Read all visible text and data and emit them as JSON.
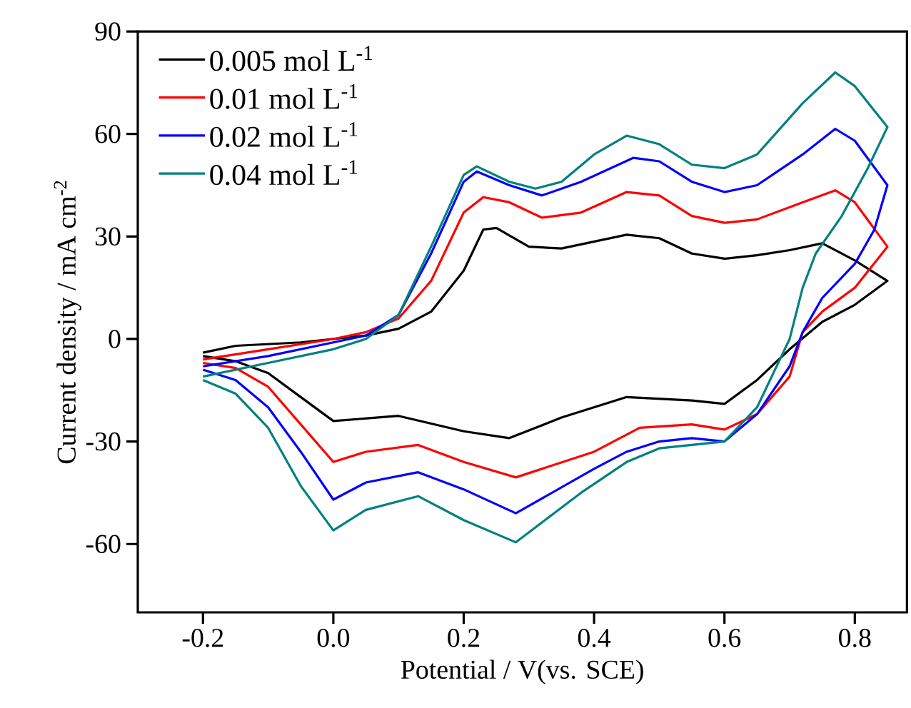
{
  "chart_data": {
    "type": "line",
    "xlabel": "Potential / V(vs. SCE)",
    "ylabel": "Current density / mA cm$^{-2}$",
    "xlim": [
      -0.3,
      0.88
    ],
    "ylim": [
      -80,
      90
    ],
    "xticks": [
      -0.2,
      {
        "value": 0,
        "label": "0.0"
      },
      0.2,
      0.4,
      0.6,
      0.8
    ],
    "yticks": [
      -60,
      -30,
      0,
      30,
      60,
      90
    ],
    "legend": "top left",
    "series": [
      {
        "name": "0.005 mol L$^{-1}$",
        "color": "#000000",
        "x": [
          -0.2,
          -0.15,
          -0.05,
          0.05,
          0.1,
          0.15,
          0.2,
          0.23,
          0.25,
          0.3,
          0.35,
          0.45,
          0.5,
          0.55,
          0.6,
          0.65,
          0.7,
          0.75,
          0.8,
          0.85,
          0.8,
          0.75,
          0.7,
          0.65,
          0.6,
          0.55,
          0.45,
          0.35,
          0.27,
          0.2,
          0.1,
          0.0,
          -0.05,
          -0.1,
          -0.15,
          -0.2
        ],
        "values": [
          -4,
          -2,
          -1,
          1,
          3,
          8,
          20,
          32,
          32.5,
          27,
          26.5,
          30.5,
          29.5,
          25,
          23.5,
          24.5,
          26,
          28,
          23,
          17,
          10,
          5,
          -3,
          -12,
          -19,
          -18,
          -17,
          -23,
          -29,
          -27,
          -22.5,
          -24,
          -17,
          -10,
          -6.5,
          -5
        ]
      },
      {
        "name": "0.01 mol L$^{-1}$",
        "color": "#ff0000",
        "x": [
          -0.2,
          -0.1,
          0,
          0.05,
          0.1,
          0.15,
          0.2,
          0.23,
          0.27,
          0.32,
          0.38,
          0.45,
          0.5,
          0.55,
          0.6,
          0.65,
          0.72,
          0.77,
          0.8,
          0.85,
          0.8,
          0.75,
          0.72,
          0.7,
          0.65,
          0.6,
          0.55,
          0.47,
          0.4,
          0.28,
          0.2,
          0.13,
          0.05,
          0,
          -0.05,
          -0.1,
          -0.15,
          -0.2
        ],
        "values": [
          -6,
          -3,
          0,
          2,
          6,
          17,
          37,
          41.5,
          40,
          35.5,
          37,
          43,
          42,
          36,
          34,
          35,
          40,
          43.5,
          40,
          27,
          15,
          8,
          2,
          -11,
          -22,
          -26.5,
          -25,
          -26,
          -33,
          -40.5,
          -36,
          -31,
          -33,
          -36,
          -25,
          -14,
          -8.5,
          -7
        ]
      },
      {
        "name": "0.02 mol L$^{-1}$",
        "color": "#0000ff",
        "x": [
          -0.2,
          -0.1,
          0,
          0.05,
          0.1,
          0.15,
          0.2,
          0.22,
          0.27,
          0.32,
          0.38,
          0.46,
          0.5,
          0.55,
          0.6,
          0.65,
          0.72,
          0.77,
          0.8,
          0.85,
          0.83,
          0.8,
          0.75,
          0.72,
          0.7,
          0.65,
          0.6,
          0.55,
          0.5,
          0.45,
          0.4,
          0.28,
          0.2,
          0.13,
          0.05,
          0,
          -0.05,
          -0.1,
          -0.15,
          -0.2
        ],
        "values": [
          -8,
          -5,
          -1,
          1,
          7,
          25,
          46,
          49,
          45,
          42,
          46,
          53,
          52,
          46,
          43,
          45,
          54,
          61.5,
          58,
          45,
          32,
          22,
          12,
          2,
          -8,
          -22,
          -30,
          -29,
          -30,
          -33,
          -38,
          -51,
          -44,
          -39,
          -42,
          -47,
          -33,
          -20,
          -12,
          -9
        ]
      },
      {
        "name": "0.04 mol L$^{-1}$",
        "color": "#008080",
        "x": [
          -0.2,
          -0.1,
          0,
          0.05,
          0.1,
          0.15,
          0.2,
          0.22,
          0.27,
          0.31,
          0.35,
          0.4,
          0.45,
          0.5,
          0.55,
          0.6,
          0.65,
          0.72,
          0.77,
          0.8,
          0.85,
          0.82,
          0.78,
          0.74,
          0.72,
          0.7,
          0.65,
          0.6,
          0.5,
          0.45,
          0.38,
          0.28,
          0.2,
          0.13,
          0.05,
          0,
          -0.05,
          -0.1,
          -0.15,
          -0.2
        ],
        "values": [
          -11,
          -7,
          -3,
          0,
          7,
          27,
          48,
          50.5,
          46,
          44,
          46,
          54,
          59.5,
          57,
          51,
          50,
          54,
          69,
          78,
          74,
          62,
          50,
          36,
          25,
          15,
          0,
          -20,
          -30,
          -32,
          -36,
          -45,
          -59.5,
          -53,
          -46,
          -50,
          -56,
          -43,
          -26,
          -16,
          -12
        ]
      }
    ]
  }
}
